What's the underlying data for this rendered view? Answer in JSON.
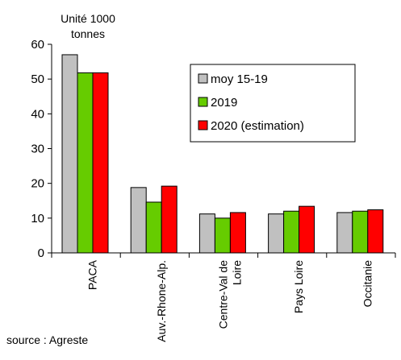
{
  "chart_data": {
    "type": "bar",
    "unit_label_line1": "Unité 1000",
    "unit_label_line2": "tonnes",
    "categories": [
      [
        "PACA"
      ],
      [
        "Auv.-Rhone-Alp."
      ],
      [
        "Centre-Val de",
        "Loire"
      ],
      [
        "Pays Loire"
      ],
      [
        "Occitanie"
      ]
    ],
    "series": [
      {
        "name": "moy 15-19",
        "color": "#c0c0c0",
        "values": [
          57,
          18.8,
          11.2,
          11.2,
          11.6
        ]
      },
      {
        "name": "2019",
        "color": "#66cc00",
        "values": [
          51.8,
          14.6,
          10.0,
          12.0,
          12.0
        ]
      },
      {
        "name": "2020 (estimation)",
        "color": "#ff0000",
        "values": [
          51.8,
          19.2,
          11.6,
          13.4,
          12.4
        ]
      }
    ],
    "yticks": [
      0,
      10,
      20,
      30,
      40,
      50,
      60
    ],
    "ylim": [
      0,
      60
    ],
    "grid": false,
    "legend_position": "upper-right",
    "source": "source : Agreste"
  }
}
